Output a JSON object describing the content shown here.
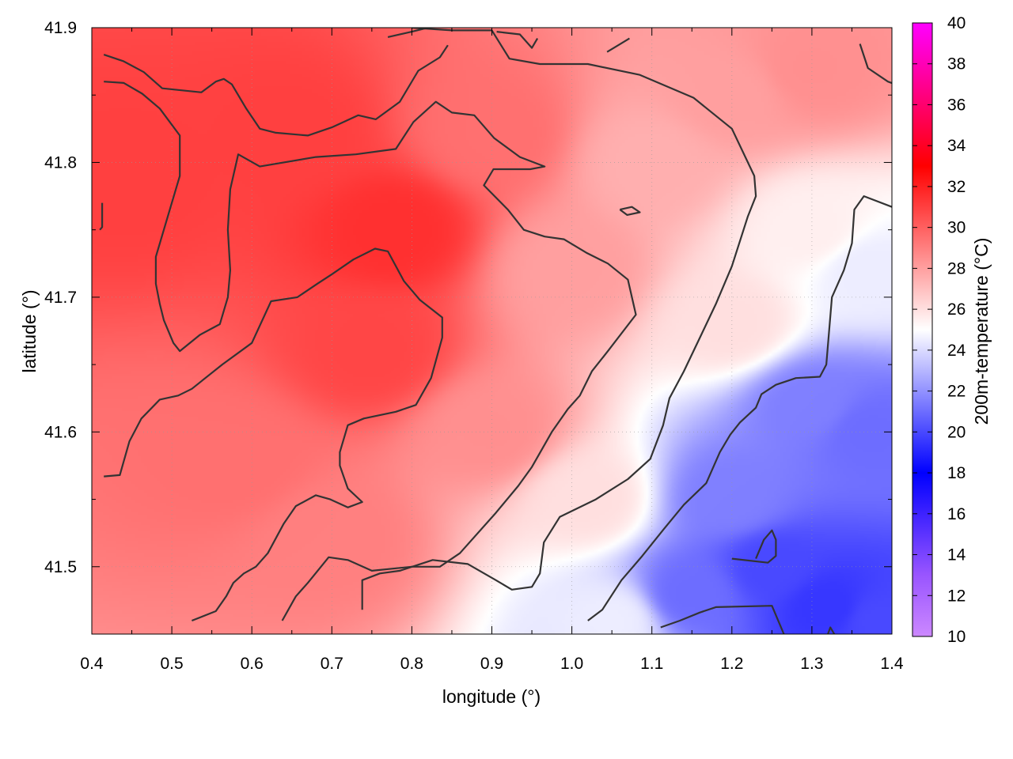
{
  "chart_data": {
    "type": "heatmap",
    "title": "",
    "xlabel": "longitude (°)",
    "ylabel": "latitude (°)",
    "colorbar_label": "200m-temperature (°C)",
    "xlim": [
      0.4,
      1.4
    ],
    "ylim": [
      41.45,
      41.9
    ],
    "xticks": [
      0.4,
      0.5,
      0.6,
      0.7,
      0.8,
      0.9,
      1.0,
      1.1,
      1.2,
      1.3,
      1.4
    ],
    "xtick_labels": [
      "0.4",
      "0.5",
      "0.6",
      "0.7",
      "0.8",
      "0.9",
      "1.0",
      "1.1",
      "1.2",
      "1.3",
      "1.4"
    ],
    "yticks": [
      41.5,
      41.6,
      41.7,
      41.8,
      41.9
    ],
    "ytick_labels": [
      "41.5",
      "41.6",
      "41.7",
      "41.8",
      "41.9"
    ],
    "colorbar": {
      "min": 10,
      "max": 40,
      "ticks": [
        10,
        12,
        14,
        16,
        18,
        20,
        22,
        24,
        26,
        28,
        30,
        32,
        34,
        36,
        38,
        40
      ],
      "tick_labels": [
        "10",
        "12",
        "14",
        "16",
        "18",
        "20",
        "22",
        "24",
        "26",
        "28",
        "30",
        "32",
        "34",
        "36",
        "38",
        "40"
      ],
      "stops": [
        {
          "value": 10,
          "color": "#cc88ff"
        },
        {
          "value": 13,
          "color": "#9955ff"
        },
        {
          "value": 18,
          "color": "#0000ff"
        },
        {
          "value": 25,
          "color": "#ffffff"
        },
        {
          "value": 33,
          "color": "#ff0000"
        },
        {
          "value": 40,
          "color": "#ff00ff"
        }
      ]
    },
    "grid": true,
    "field_centers": [
      {
        "lon": 0.78,
        "lat": 41.75,
        "value": 31.5
      },
      {
        "lon": 0.75,
        "lat": 41.66,
        "value": 30.8
      },
      {
        "lon": 0.45,
        "lat": 41.79,
        "value": 31.0
      },
      {
        "lon": 0.65,
        "lat": 41.82,
        "value": 31.0
      },
      {
        "lon": 0.58,
        "lat": 41.58,
        "value": 29.5
      },
      {
        "lon": 0.7,
        "lat": 41.52,
        "value": 29.0
      },
      {
        "lon": 0.9,
        "lat": 41.82,
        "value": 29.5
      },
      {
        "lon": 0.9,
        "lat": 41.6,
        "value": 28.5
      },
      {
        "lon": 1.0,
        "lat": 41.72,
        "value": 28.0
      },
      {
        "lon": 1.1,
        "lat": 41.8,
        "value": 27.5
      },
      {
        "lon": 1.2,
        "lat": 41.85,
        "value": 28.0
      },
      {
        "lon": 1.3,
        "lat": 41.87,
        "value": 28.5
      },
      {
        "lon": 1.02,
        "lat": 41.55,
        "value": 26.0
      },
      {
        "lon": 1.05,
        "lat": 41.46,
        "value": 24.5
      },
      {
        "lon": 1.2,
        "lat": 41.68,
        "value": 26.0
      },
      {
        "lon": 1.3,
        "lat": 41.75,
        "value": 25.5
      },
      {
        "lon": 1.37,
        "lat": 41.72,
        "value": 24.5
      },
      {
        "lon": 1.3,
        "lat": 41.62,
        "value": 21.5
      },
      {
        "lon": 1.37,
        "lat": 41.6,
        "value": 21.0
      },
      {
        "lon": 1.2,
        "lat": 41.55,
        "value": 21.5
      },
      {
        "lon": 1.25,
        "lat": 41.5,
        "value": 20.0
      },
      {
        "lon": 1.15,
        "lat": 41.48,
        "value": 21.0
      },
      {
        "lon": 1.32,
        "lat": 41.47,
        "value": 19.5
      },
      {
        "lon": 1.38,
        "lat": 41.46,
        "value": 20.0
      }
    ],
    "contours": [
      [
        [
          0.415,
          41.88
        ],
        [
          0.44,
          41.875
        ],
        [
          0.465,
          41.867
        ],
        [
          0.488,
          41.855
        ],
        [
          0.537,
          41.852
        ],
        [
          0.555,
          41.86
        ],
        [
          0.565,
          41.862
        ],
        [
          0.575,
          41.858
        ],
        [
          0.593,
          41.84
        ],
        [
          0.61,
          41.825
        ],
        [
          0.63,
          41.822
        ],
        [
          0.67,
          41.82
        ],
        [
          0.7,
          41.826
        ],
        [
          0.733,
          41.835
        ],
        [
          0.755,
          41.832
        ],
        [
          0.785,
          41.845
        ],
        [
          0.808,
          41.868
        ],
        [
          0.835,
          41.878
        ],
        [
          0.845,
          41.887
        ]
      ],
      [
        [
          0.415,
          41.86
        ],
        [
          0.44,
          41.859
        ],
        [
          0.463,
          41.851
        ],
        [
          0.485,
          41.84
        ],
        [
          0.51,
          41.82
        ],
        [
          0.51,
          41.79
        ],
        [
          0.5,
          41.77
        ],
        [
          0.49,
          41.75
        ],
        [
          0.48,
          41.73
        ],
        [
          0.48,
          41.71
        ],
        [
          0.485,
          41.695
        ],
        [
          0.49,
          41.683
        ],
        [
          0.502,
          41.666
        ],
        [
          0.51,
          41.66
        ],
        [
          0.535,
          41.672
        ],
        [
          0.56,
          41.68
        ],
        [
          0.57,
          41.7
        ],
        [
          0.573,
          41.72
        ],
        [
          0.57,
          41.75
        ],
        [
          0.573,
          41.78
        ],
        [
          0.583,
          41.806
        ],
        [
          0.61,
          41.797
        ],
        [
          0.68,
          41.804
        ],
        [
          0.73,
          41.806
        ],
        [
          0.78,
          41.81
        ],
        [
          0.802,
          41.83
        ],
        [
          0.83,
          41.845
        ],
        [
          0.85,
          41.837
        ],
        [
          0.878,
          41.835
        ],
        [
          0.903,
          41.818
        ],
        [
          0.935,
          41.804
        ],
        [
          0.966,
          41.797
        ],
        [
          0.948,
          41.795
        ],
        [
          0.902,
          41.795
        ],
        [
          0.89,
          41.783
        ],
        [
          0.92,
          41.765
        ],
        [
          0.94,
          41.75
        ],
        [
          0.966,
          41.745
        ],
        [
          0.99,
          41.743
        ],
        [
          1.018,
          41.733
        ],
        [
          1.045,
          41.725
        ],
        [
          1.07,
          41.713
        ],
        [
          1.08,
          41.687
        ],
        [
          1.045,
          41.66
        ],
        [
          1.025,
          41.645
        ],
        [
          1.01,
          41.627
        ],
        [
          0.995,
          41.617
        ],
        [
          0.975,
          41.6
        ],
        [
          0.95,
          41.574
        ],
        [
          0.933,
          41.56
        ],
        [
          0.905,
          41.54
        ],
        [
          0.86,
          41.51
        ],
        [
          0.835,
          41.5
        ],
        [
          0.8,
          41.5
        ],
        [
          0.75,
          41.497
        ],
        [
          0.72,
          41.505
        ],
        [
          0.696,
          41.507
        ],
        [
          0.67,
          41.488
        ],
        [
          0.655,
          41.478
        ],
        [
          0.638,
          41.46
        ]
      ],
      [
        [
          0.415,
          41.567
        ],
        [
          0.435,
          41.568
        ],
        [
          0.447,
          41.593
        ],
        [
          0.462,
          41.61
        ],
        [
          0.485,
          41.624
        ],
        [
          0.508,
          41.627
        ],
        [
          0.525,
          41.632
        ],
        [
          0.563,
          41.65
        ],
        [
          0.6,
          41.666
        ],
        [
          0.624,
          41.697
        ],
        [
          0.657,
          41.7
        ],
        [
          0.682,
          41.71
        ],
        [
          0.7,
          41.717
        ],
        [
          0.727,
          41.728
        ],
        [
          0.754,
          41.736
        ],
        [
          0.77,
          41.734
        ],
        [
          0.79,
          41.712
        ],
        [
          0.81,
          41.698
        ],
        [
          0.838,
          41.685
        ],
        [
          0.838,
          41.67
        ],
        [
          0.824,
          41.64
        ],
        [
          0.805,
          41.62
        ],
        [
          0.78,
          41.615
        ],
        [
          0.74,
          41.61
        ],
        [
          0.72,
          41.605
        ],
        [
          0.71,
          41.585
        ],
        [
          0.71,
          41.575
        ],
        [
          0.72,
          41.558
        ],
        [
          0.738,
          41.548
        ],
        [
          0.72,
          41.544
        ],
        [
          0.698,
          41.55
        ],
        [
          0.68,
          41.553
        ],
        [
          0.655,
          41.545
        ],
        [
          0.64,
          41.532
        ],
        [
          0.62,
          41.51
        ],
        [
          0.605,
          41.5
        ],
        [
          0.59,
          41.495
        ],
        [
          0.577,
          41.488
        ],
        [
          0.568,
          41.478
        ],
        [
          0.555,
          41.467
        ],
        [
          0.525,
          41.46
        ]
      ],
      [
        [
          0.738,
          41.468
        ],
        [
          0.738,
          41.49
        ],
        [
          0.76,
          41.495
        ],
        [
          0.785,
          41.497
        ],
        [
          0.826,
          41.505
        ],
        [
          0.87,
          41.502
        ],
        [
          0.905,
          41.49
        ],
        [
          0.925,
          41.483
        ],
        [
          0.95,
          41.485
        ],
        [
          0.96,
          41.495
        ],
        [
          0.965,
          41.518
        ],
        [
          0.985,
          41.537
        ],
        [
          1.03,
          41.55
        ],
        [
          1.07,
          41.565
        ],
        [
          1.098,
          41.58
        ],
        [
          1.114,
          41.605
        ],
        [
          1.122,
          41.625
        ],
        [
          1.14,
          41.645
        ],
        [
          1.16,
          41.67
        ],
        [
          1.18,
          41.695
        ],
        [
          1.2,
          41.723
        ],
        [
          1.22,
          41.76
        ],
        [
          1.23,
          41.775
        ],
        [
          1.228,
          41.79
        ],
        [
          1.2,
          41.825
        ],
        [
          1.152,
          41.848
        ],
        [
          1.085,
          41.865
        ],
        [
          1.02,
          41.873
        ],
        [
          0.96,
          41.873
        ],
        [
          0.922,
          41.877
        ],
        [
          0.9,
          41.898
        ],
        [
          0.85,
          41.898
        ],
        [
          0.8,
          41.9
        ]
      ],
      [
        [
          0.41,
          41.75
        ],
        [
          0.413,
          41.752
        ],
        [
          0.413,
          41.77
        ]
      ],
      [
        [
          0.82,
          41.9
        ],
        [
          0.8,
          41.897
        ],
        [
          0.77,
          41.893
        ]
      ],
      [
        [
          0.906,
          41.897
        ],
        [
          0.935,
          41.895
        ],
        [
          0.95,
          41.885
        ],
        [
          0.957,
          41.892
        ]
      ],
      [
        [
          1.044,
          41.882
        ],
        [
          1.058,
          41.887
        ],
        [
          1.072,
          41.892
        ]
      ],
      [
        [
          1.36,
          41.888
        ],
        [
          1.37,
          41.87
        ],
        [
          1.395,
          41.86
        ],
        [
          1.418,
          41.855
        ]
      ],
      [
        [
          1.06,
          41.765
        ],
        [
          1.075,
          41.767
        ],
        [
          1.085,
          41.763
        ],
        [
          1.069,
          41.761
        ],
        [
          1.06,
          41.765
        ]
      ],
      [
        [
          1.02,
          41.46
        ],
        [
          1.038,
          41.468
        ],
        [
          1.062,
          41.49
        ],
        [
          1.088,
          41.508
        ],
        [
          1.115,
          41.528
        ],
        [
          1.14,
          41.546
        ],
        [
          1.168,
          41.562
        ],
        [
          1.185,
          41.585
        ],
        [
          1.198,
          41.598
        ],
        [
          1.21,
          41.607
        ],
        [
          1.23,
          41.618
        ],
        [
          1.237,
          41.628
        ],
        [
          1.255,
          41.635
        ],
        [
          1.28,
          41.64
        ],
        [
          1.31,
          41.641
        ],
        [
          1.318,
          41.65
        ],
        [
          1.325,
          41.7
        ],
        [
          1.34,
          41.72
        ],
        [
          1.35,
          41.74
        ],
        [
          1.353,
          41.765
        ],
        [
          1.365,
          41.775
        ],
        [
          1.4,
          41.767
        ]
      ],
      [
        [
          1.2,
          41.506
        ],
        [
          1.245,
          41.503
        ],
        [
          1.255,
          41.508
        ],
        [
          1.255,
          41.52
        ],
        [
          1.25,
          41.527
        ],
        [
          1.24,
          41.52
        ],
        [
          1.23,
          41.506
        ]
      ],
      [
        [
          1.111,
          41.455
        ],
        [
          1.135,
          41.46
        ],
        [
          1.16,
          41.466
        ],
        [
          1.18,
          41.47
        ],
        [
          1.25,
          41.471
        ],
        [
          1.265,
          41.45
        ]
      ],
      [
        [
          1.32,
          41.45
        ],
        [
          1.323,
          41.455
        ],
        [
          1.328,
          41.45
        ]
      ]
    ]
  }
}
